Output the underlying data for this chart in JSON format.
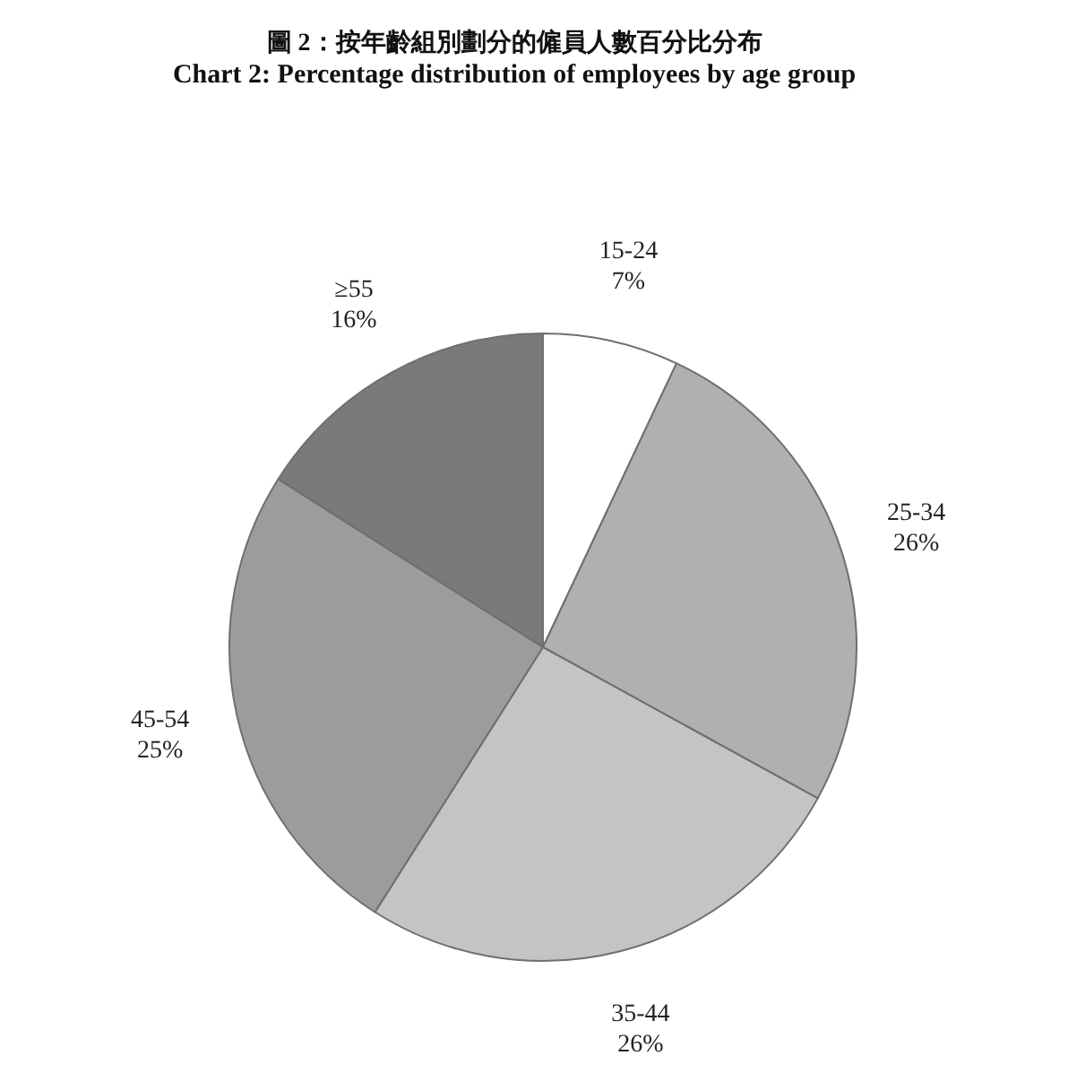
{
  "chart_data": {
    "type": "pie",
    "title": "圖 2：按年齡組別劃分的僱員人數百分比分布",
    "subtitle": "Chart 2: Percentage distribution of employees by age group",
    "categories": [
      "15-24",
      "25-34",
      "35-44",
      "45-54",
      "≥55"
    ],
    "values": [
      7,
      26,
      26,
      25,
      16
    ],
    "value_labels": [
      "7%",
      "26%",
      "26%",
      "25%",
      "16%"
    ],
    "colors": [
      "#ffffff",
      "#b0b0b0",
      "#c4c4c4",
      "#9c9c9c",
      "#7a7a7a"
    ]
  }
}
